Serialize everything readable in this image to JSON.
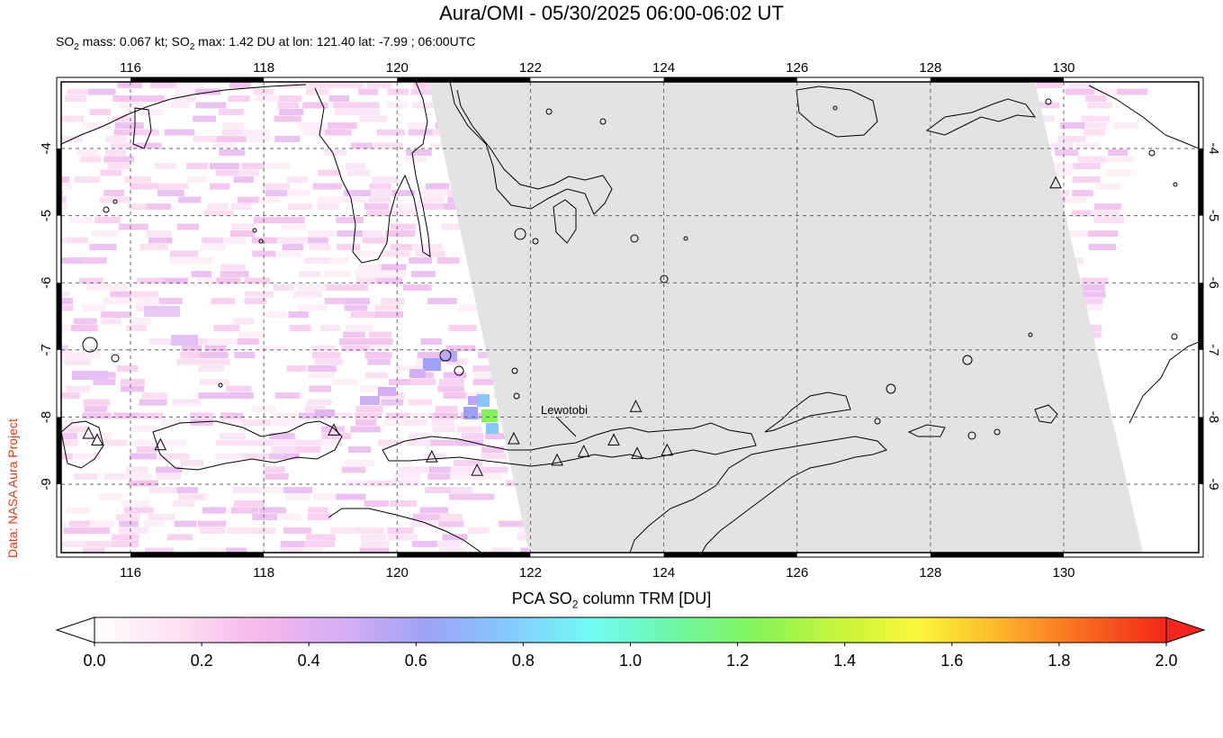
{
  "header": {
    "title": "Aura/OMI - 05/30/2025 06:00-06:02 UT",
    "subtitle_parts": {
      "a": "SO",
      "a_sub": "2",
      "b": " mass: 0.067 kt; SO",
      "b_sub": "2",
      "c": " max: 1.42 DU at lon: 121.40 lat: -7.99 ; 06:00UTC"
    }
  },
  "credit": "Data: NASA Aura Project",
  "map": {
    "lon_range": [
      115,
      132
    ],
    "lat_range": [
      -10.1,
      -3.0
    ],
    "lon_ticks": [
      "116",
      "118",
      "120",
      "122",
      "124",
      "126",
      "128",
      "130"
    ],
    "lat_ticks": [
      "-4",
      "-5",
      "-6",
      "-7",
      "-8",
      "-9"
    ],
    "lon_tick_values": [
      116,
      118,
      120,
      122,
      124,
      126,
      128,
      130
    ],
    "lat_tick_values": [
      -4,
      -5,
      -6,
      -7,
      -8,
      -9
    ],
    "volcano_label": "Lewotobi",
    "volcanoes": [
      {
        "lon": 115.37,
        "lat": -8.25
      },
      {
        "lon": 115.5,
        "lat": -8.35
      },
      {
        "lon": 116.45,
        "lat": -8.42
      },
      {
        "lon": 119.05,
        "lat": -8.2
      },
      {
        "lon": 120.52,
        "lat": -8.6
      },
      {
        "lon": 121.2,
        "lat": -8.8
      },
      {
        "lon": 121.75,
        "lat": -8.33
      },
      {
        "lon": 122.4,
        "lat": -8.65
      },
      {
        "lon": 122.8,
        "lat": -8.52
      },
      {
        "lon": 123.25,
        "lat": -8.35
      },
      {
        "lon": 123.58,
        "lat": -7.85
      },
      {
        "lon": 123.6,
        "lat": -8.55
      },
      {
        "lon": 124.05,
        "lat": -8.5
      },
      {
        "lon": 129.88,
        "lat": -4.52
      }
    ],
    "swath_color": "#e3e3e3"
  },
  "colorbar": {
    "title_a": "PCA SO",
    "title_sub": "2",
    "title_b": " column TRM [DU]",
    "ticks": [
      "0.0",
      "0.2",
      "0.4",
      "0.6",
      "0.8",
      "1.0",
      "1.2",
      "1.4",
      "1.6",
      "1.8",
      "2.0"
    ],
    "range": [
      0,
      2
    ],
    "colors": [
      "#ffffff",
      "#fde0f0",
      "#f5b8ec",
      "#d6aef4",
      "#9da2f6",
      "#86c8fb",
      "#70fbf5",
      "#6ef7a8",
      "#84f35a",
      "#c4f53a",
      "#fbf63a",
      "#fcb42c",
      "#f86a1f",
      "#f2261a"
    ]
  }
}
